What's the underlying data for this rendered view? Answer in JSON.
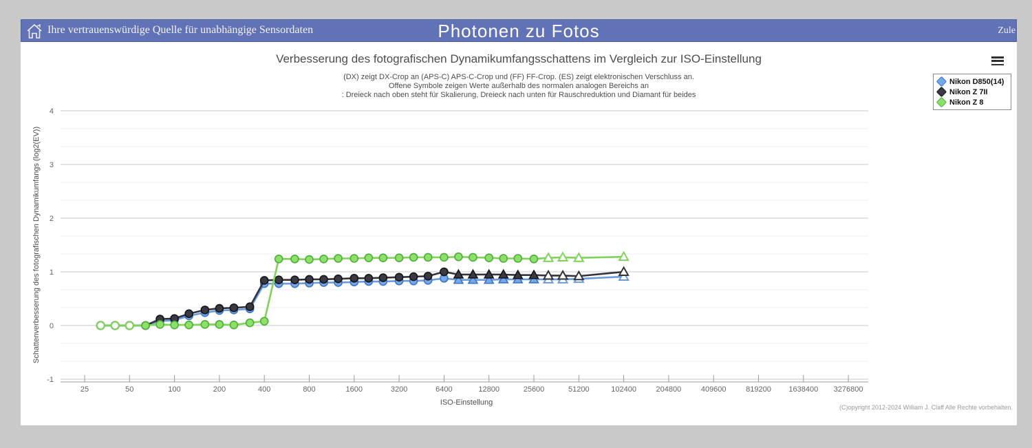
{
  "header": {
    "tagline": "Ihre vertrauenswürdige Quelle für unabhängige Sensordaten",
    "title": "Photonen zu Fotos",
    "right_text": "Zule",
    "bg_color": "#6272b6"
  },
  "icons": {
    "home-icon": "house-outline",
    "menu-icon": "hamburger-bars",
    "legend-marker": "diamond"
  },
  "chart": {
    "title": "Verbesserung des fotografischen Dynamikumfangsschattens im Vergleich zur ISO-Einstellung",
    "subtitle_lines": [
      "(DX) zeigt DX-Crop an (APS-C) APS-C-Crop und (FF) FF-Crop. (ES) zeigt elektronischen Verschluss an.",
      "Offene Symbole zeigen Werte außerhalb des normalen analogen Bereichs an",
      ": Dreieck nach oben steht für Skalierung, Dreieck nach unten für Rauschreduktion und Diamant für beides"
    ],
    "xlabel": "ISO-Einstellung",
    "ylabel": "Schattenverbesserung des fotografischen Dynamikumfangs (log2(EV))",
    "copyright": "(C)opyright 2012-2024 William J. Claff Alle Rechte vorbehalten."
  },
  "chart_data": {
    "type": "line",
    "x_scale": "log2",
    "x_ticks": [
      25,
      50,
      100,
      200,
      400,
      800,
      1600,
      3200,
      6400,
      12800,
      25600,
      51200,
      102400,
      204800,
      409600,
      819200,
      1638400,
      3276800
    ],
    "y_ticks": [
      -1,
      0,
      1,
      2,
      3,
      4
    ],
    "ylim": [
      -1,
      4
    ],
    "minor_grid_step": 0.3333,
    "grid": true,
    "legend_position": "top-right",
    "marker_codes": {
      "fc": "filled-circle",
      "oc": "open-circle",
      "ft": "filled-triangle-up",
      "ot": "open-triangle-up"
    },
    "series": [
      {
        "name": "Nikon D850(14)",
        "line": "#6b9bdd",
        "fill": "#74a8e8",
        "stroke": "#3f74c4",
        "points": [
          [
            32,
            0,
            "oc"
          ],
          [
            40,
            0,
            "oc"
          ],
          [
            50,
            0,
            "oc"
          ],
          [
            64,
            0,
            "fc"
          ],
          [
            80,
            0.08,
            "fc"
          ],
          [
            100,
            0.1,
            "fc"
          ],
          [
            125,
            0.18,
            "fc"
          ],
          [
            160,
            0.24,
            "fc"
          ],
          [
            200,
            0.28,
            "fc"
          ],
          [
            250,
            0.29,
            "fc"
          ],
          [
            320,
            0.31,
            "fc"
          ],
          [
            400,
            0.78,
            "fc"
          ],
          [
            500,
            0.78,
            "fc"
          ],
          [
            640,
            0.78,
            "fc"
          ],
          [
            800,
            0.79,
            "fc"
          ],
          [
            1000,
            0.8,
            "fc"
          ],
          [
            1250,
            0.8,
            "fc"
          ],
          [
            1600,
            0.81,
            "fc"
          ],
          [
            2000,
            0.82,
            "fc"
          ],
          [
            2500,
            0.82,
            "fc"
          ],
          [
            3200,
            0.83,
            "fc"
          ],
          [
            4000,
            0.83,
            "fc"
          ],
          [
            5000,
            0.84,
            "fc"
          ],
          [
            6400,
            0.88,
            "fc"
          ],
          [
            8000,
            0.85,
            "ft"
          ],
          [
            10000,
            0.85,
            "ft"
          ],
          [
            12800,
            0.85,
            "ft"
          ],
          [
            16000,
            0.86,
            "ft"
          ],
          [
            20000,
            0.86,
            "ft"
          ],
          [
            25600,
            0.86,
            "ft"
          ],
          [
            32000,
            0.86,
            "ot"
          ],
          [
            40000,
            0.86,
            "ot"
          ],
          [
            51200,
            0.87,
            "ot"
          ],
          [
            102400,
            0.91,
            "ot"
          ]
        ]
      },
      {
        "name": "Nikon Z 7II",
        "line": "#33333b",
        "fill": "#3a3a42",
        "stroke": "#141419",
        "points": [
          [
            32,
            0,
            "oc"
          ],
          [
            40,
            0,
            "oc"
          ],
          [
            50,
            0,
            "oc"
          ],
          [
            64,
            0,
            "fc"
          ],
          [
            80,
            0.12,
            "fc"
          ],
          [
            100,
            0.13,
            "fc"
          ],
          [
            125,
            0.22,
            "fc"
          ],
          [
            160,
            0.29,
            "fc"
          ],
          [
            200,
            0.32,
            "fc"
          ],
          [
            250,
            0.33,
            "fc"
          ],
          [
            320,
            0.35,
            "fc"
          ],
          [
            400,
            0.84,
            "fc"
          ],
          [
            500,
            0.85,
            "fc"
          ],
          [
            640,
            0.85,
            "fc"
          ],
          [
            800,
            0.86,
            "fc"
          ],
          [
            1000,
            0.86,
            "fc"
          ],
          [
            1250,
            0.87,
            "fc"
          ],
          [
            1600,
            0.88,
            "fc"
          ],
          [
            2000,
            0.88,
            "fc"
          ],
          [
            2500,
            0.89,
            "fc"
          ],
          [
            3200,
            0.9,
            "fc"
          ],
          [
            4000,
            0.91,
            "fc"
          ],
          [
            5000,
            0.92,
            "fc"
          ],
          [
            6400,
            1.0,
            "fc"
          ],
          [
            8000,
            0.95,
            "ft"
          ],
          [
            10000,
            0.95,
            "ft"
          ],
          [
            12800,
            0.95,
            "ft"
          ],
          [
            16000,
            0.95,
            "ft"
          ],
          [
            20000,
            0.94,
            "ft"
          ],
          [
            25600,
            0.94,
            "ft"
          ],
          [
            32000,
            0.93,
            "ot"
          ],
          [
            40000,
            0.93,
            "ot"
          ],
          [
            51200,
            0.92,
            "ot"
          ],
          [
            102400,
            1.0,
            "ot"
          ]
        ]
      },
      {
        "name": "Nikon Z 8",
        "line": "#7fd457",
        "fill": "#8ee06b",
        "stroke": "#4aaf35",
        "points": [
          [
            32,
            0,
            "oc"
          ],
          [
            40,
            0,
            "oc"
          ],
          [
            50,
            0,
            "oc"
          ],
          [
            64,
            0,
            "fc"
          ],
          [
            80,
            0.02,
            "fc"
          ],
          [
            100,
            0.01,
            "fc"
          ],
          [
            125,
            0.01,
            "fc"
          ],
          [
            160,
            0.02,
            "fc"
          ],
          [
            200,
            0.02,
            "fc"
          ],
          [
            250,
            0.01,
            "fc"
          ],
          [
            320,
            0.05,
            "fc"
          ],
          [
            400,
            0.08,
            "fc"
          ],
          [
            500,
            1.24,
            "fc"
          ],
          [
            640,
            1.24,
            "fc"
          ],
          [
            800,
            1.23,
            "fc"
          ],
          [
            1000,
            1.24,
            "fc"
          ],
          [
            1250,
            1.25,
            "fc"
          ],
          [
            1600,
            1.25,
            "fc"
          ],
          [
            2000,
            1.26,
            "fc"
          ],
          [
            2500,
            1.26,
            "fc"
          ],
          [
            3200,
            1.26,
            "fc"
          ],
          [
            4000,
            1.27,
            "fc"
          ],
          [
            5000,
            1.27,
            "fc"
          ],
          [
            6400,
            1.27,
            "fc"
          ],
          [
            8000,
            1.28,
            "fc"
          ],
          [
            10000,
            1.27,
            "fc"
          ],
          [
            12800,
            1.26,
            "fc"
          ],
          [
            16000,
            1.25,
            "fc"
          ],
          [
            20000,
            1.25,
            "fc"
          ],
          [
            25600,
            1.24,
            "fc"
          ],
          [
            32000,
            1.26,
            "ot"
          ],
          [
            40000,
            1.27,
            "ot"
          ],
          [
            51200,
            1.26,
            "ot"
          ],
          [
            102400,
            1.28,
            "ot"
          ]
        ]
      }
    ]
  }
}
